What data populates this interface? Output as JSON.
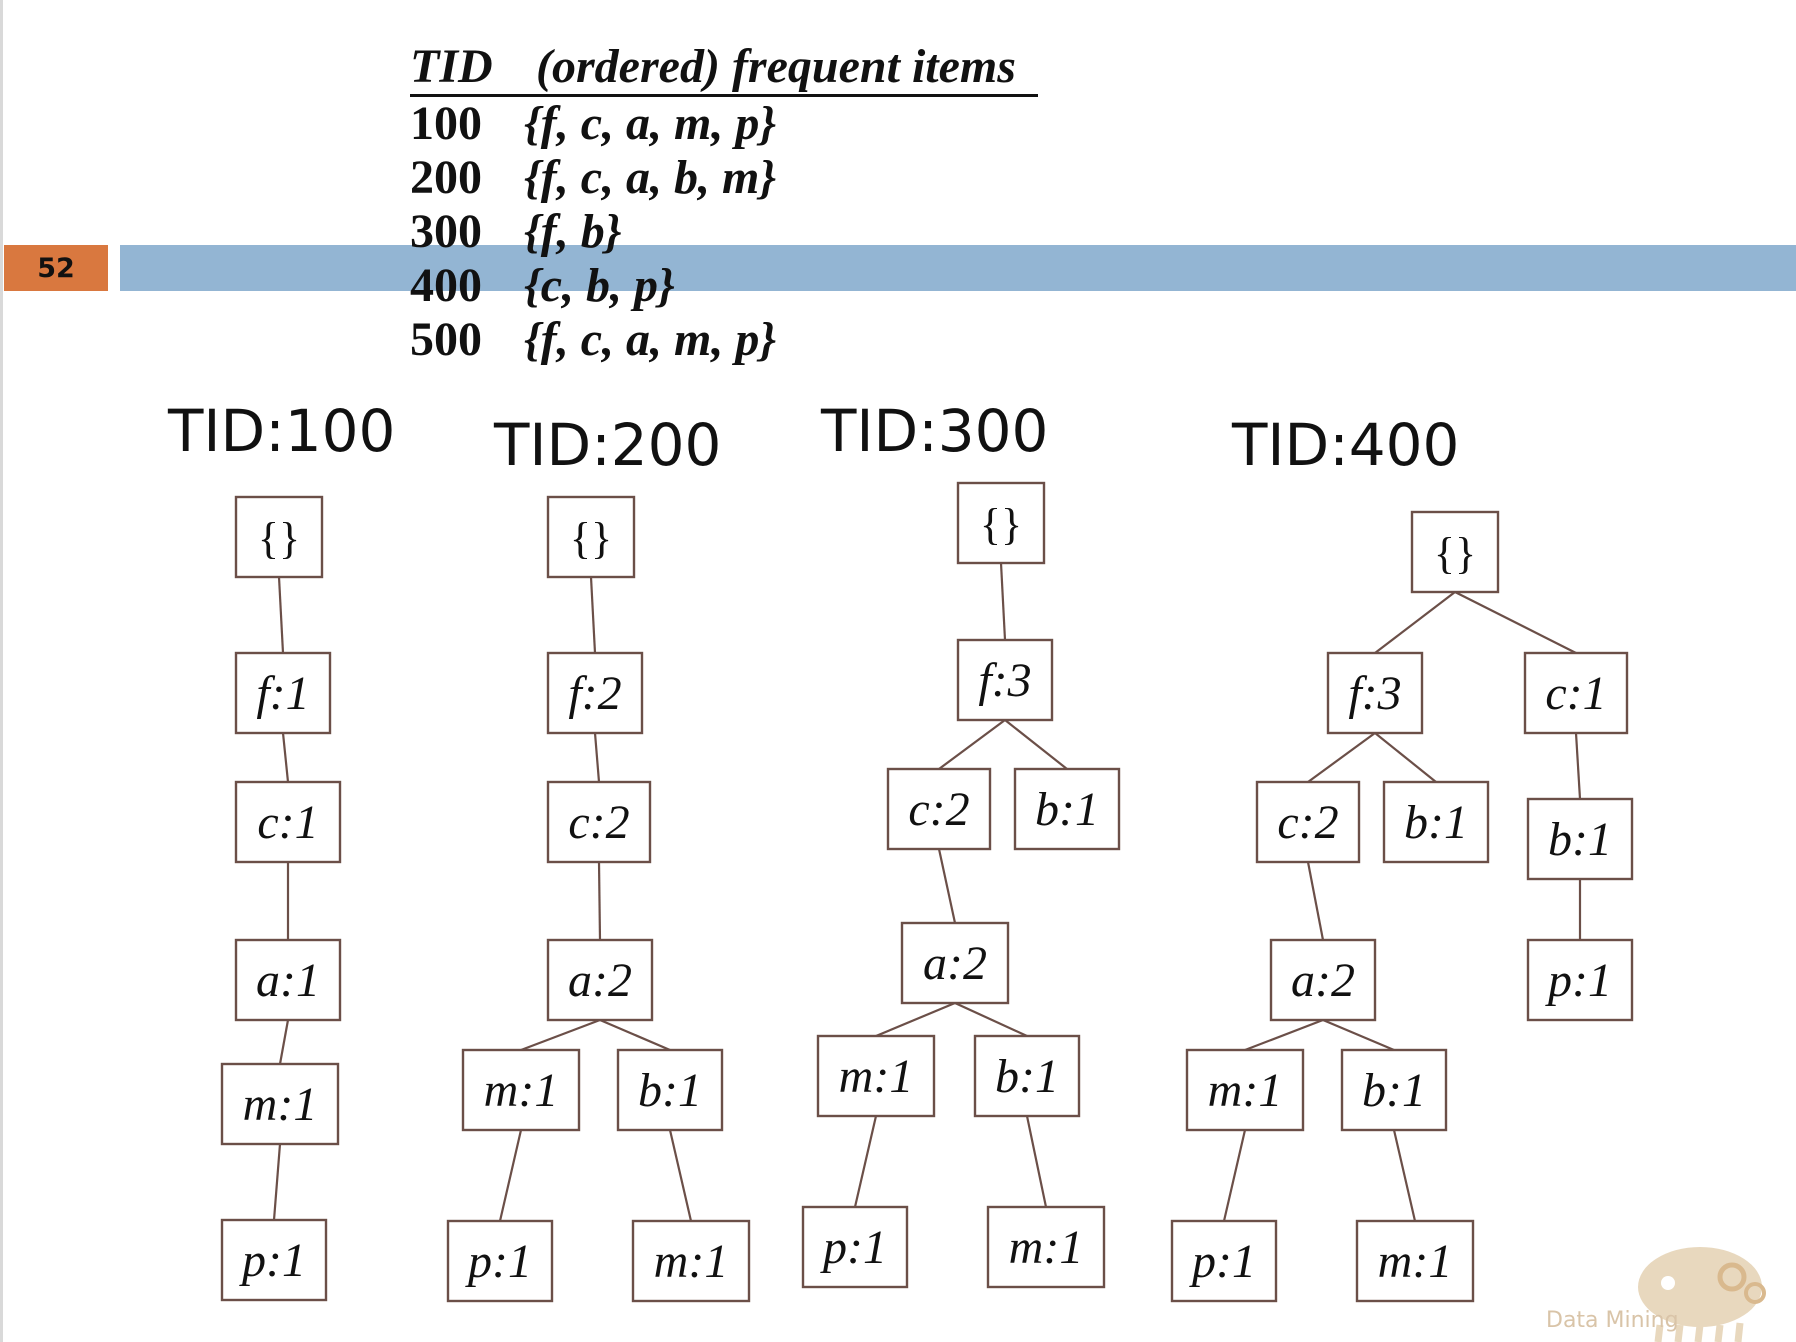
{
  "slide": {
    "number": "52"
  },
  "transactions": {
    "header": {
      "tid": "TID",
      "items": "(ordered) frequent items"
    },
    "rows": [
      {
        "tid": "100",
        "items": "{f, c, a, m, p}"
      },
      {
        "tid": "200",
        "items": "{f, c, a, b, m}"
      },
      {
        "tid": "300",
        "items": "{f, b}"
      },
      {
        "tid": "400",
        "items": "{c, b, p}"
      },
      {
        "tid": "500",
        "items": "{f, c, a, m, p}"
      }
    ]
  },
  "trees": [
    {
      "title": "TID:100",
      "nodes": [
        {
          "id": "r",
          "label": "{}"
        },
        {
          "id": "f",
          "label": "f:1"
        },
        {
          "id": "c",
          "label": "c:1"
        },
        {
          "id": "a",
          "label": "a:1"
        },
        {
          "id": "m",
          "label": "m:1"
        },
        {
          "id": "p",
          "label": "p:1"
        }
      ],
      "edges": [
        [
          "r",
          "f"
        ],
        [
          "f",
          "c"
        ],
        [
          "c",
          "a"
        ],
        [
          "a",
          "m"
        ],
        [
          "m",
          "p"
        ]
      ]
    },
    {
      "title": "TID:200",
      "nodes": [
        {
          "id": "r",
          "label": "{}"
        },
        {
          "id": "f",
          "label": "f:2"
        },
        {
          "id": "c",
          "label": "c:2"
        },
        {
          "id": "a",
          "label": "a:2"
        },
        {
          "id": "m",
          "label": "m:1"
        },
        {
          "id": "b",
          "label": "b:1"
        },
        {
          "id": "p",
          "label": "p:1"
        },
        {
          "id": "m2",
          "label": "m:1"
        }
      ],
      "edges": [
        [
          "r",
          "f"
        ],
        [
          "f",
          "c"
        ],
        [
          "c",
          "a"
        ],
        [
          "a",
          "m"
        ],
        [
          "a",
          "b"
        ],
        [
          "m",
          "p"
        ],
        [
          "b",
          "m2"
        ]
      ]
    },
    {
      "title": "TID:300",
      "nodes": [
        {
          "id": "r",
          "label": "{}"
        },
        {
          "id": "f",
          "label": "f:3"
        },
        {
          "id": "c",
          "label": "c:2"
        },
        {
          "id": "b",
          "label": "b:1"
        },
        {
          "id": "a",
          "label": "a:2"
        },
        {
          "id": "m",
          "label": "m:1"
        },
        {
          "id": "b2",
          "label": "b:1"
        },
        {
          "id": "p",
          "label": "p:1"
        },
        {
          "id": "m2",
          "label": "m:1"
        }
      ],
      "edges": [
        [
          "r",
          "f"
        ],
        [
          "f",
          "c"
        ],
        [
          "f",
          "b"
        ],
        [
          "c",
          "a"
        ],
        [
          "a",
          "m"
        ],
        [
          "a",
          "b2"
        ],
        [
          "m",
          "p"
        ],
        [
          "b2",
          "m2"
        ]
      ]
    },
    {
      "title": "TID:400",
      "nodes": [
        {
          "id": "r",
          "label": "{}"
        },
        {
          "id": "f",
          "label": "f:3"
        },
        {
          "id": "c1",
          "label": "c:1"
        },
        {
          "id": "c",
          "label": "c:2"
        },
        {
          "id": "b",
          "label": "b:1"
        },
        {
          "id": "b3",
          "label": "b:1"
        },
        {
          "id": "a",
          "label": "a:2"
        },
        {
          "id": "p3",
          "label": "p:1"
        },
        {
          "id": "m",
          "label": "m:1"
        },
        {
          "id": "b2",
          "label": "b:1"
        },
        {
          "id": "p",
          "label": "p:1"
        },
        {
          "id": "m2",
          "label": "m:1"
        }
      ],
      "edges": [
        [
          "r",
          "f"
        ],
        [
          "r",
          "c1"
        ],
        [
          "f",
          "c"
        ],
        [
          "f",
          "b"
        ],
        [
          "c1",
          "b3"
        ],
        [
          "b3",
          "p3"
        ],
        [
          "c",
          "a"
        ],
        [
          "a",
          "m"
        ],
        [
          "a",
          "b2"
        ],
        [
          "m",
          "p"
        ],
        [
          "b2",
          "m2"
        ]
      ]
    }
  ],
  "logo": {
    "text": "Data Mining"
  }
}
